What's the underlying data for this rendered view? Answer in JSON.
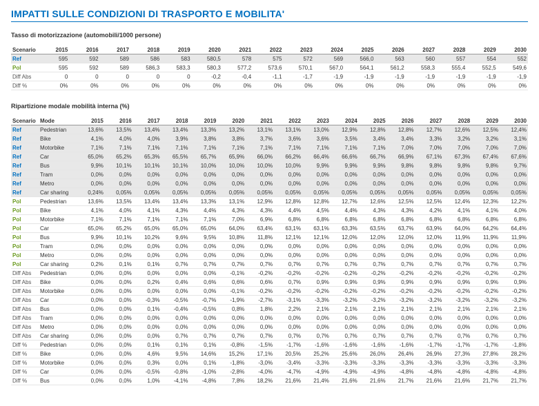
{
  "title": "IMPATTI SULLE CONDIZIONI DI TRASPORTO E MOBILITA'",
  "years": [
    "2015",
    "2016",
    "2017",
    "2018",
    "2019",
    "2020",
    "2021",
    "2022",
    "2023",
    "2024",
    "2025",
    "2026",
    "2027",
    "2028",
    "2029",
    "2030"
  ],
  "t1": {
    "title": "Tasso di motorizzazione (automobili/1000 persone)",
    "scenarioHeader": "Scenario",
    "rows": [
      {
        "s": "Ref",
        "cls": "ref",
        "shade": true,
        "v": [
          "595",
          "592",
          "589",
          "586",
          "583",
          "580,5",
          "578",
          "575",
          "572",
          "569",
          "566,0",
          "563",
          "560",
          "557",
          "554",
          "552"
        ]
      },
      {
        "s": "Pol",
        "cls": "pol",
        "v": [
          "595",
          "592",
          "589",
          "586,3",
          "583,3",
          "580,3",
          "577,2",
          "573,6",
          "570,1",
          "567,0",
          "564,1",
          "561,2",
          "558,3",
          "555,4",
          "552,5",
          "549,6"
        ]
      },
      {
        "s": "Diff Abs",
        "cls": "diff",
        "v": [
          "0",
          "0",
          "0",
          "0",
          "0",
          "-0,2",
          "-0,4",
          "-1,1",
          "-1,7",
          "-1,9",
          "-1,9",
          "-1,9",
          "-1,9",
          "-1,9",
          "-1,9",
          "-1,9"
        ]
      },
      {
        "s": "Diff %",
        "cls": "diff",
        "v": [
          "0%",
          "0%",
          "0%",
          "0%",
          "0%",
          "0%",
          "0%",
          "0%",
          "0%",
          "0%",
          "0%",
          "0%",
          "0%",
          "0%",
          "0%",
          "0%"
        ]
      }
    ]
  },
  "t2": {
    "title": "Ripartizione modale mobilità interna (%)",
    "scenarioHeader": "Scenario",
    "modeHeader": "Mode",
    "rows": [
      {
        "s": "Ref",
        "m": "Pedestrian",
        "cls": "ref",
        "shade": true,
        "v": [
          "13,6%",
          "13,5%",
          "13,4%",
          "13,4%",
          "13,3%",
          "13,2%",
          "13,1%",
          "13,1%",
          "13,0%",
          "12,9%",
          "12,8%",
          "12,8%",
          "12,7%",
          "12,6%",
          "12,5%",
          "12,4%"
        ]
      },
      {
        "s": "Ref",
        "m": "Bike",
        "cls": "ref",
        "shade": true,
        "v": [
          "4,1%",
          "4,0%",
          "4,0%",
          "3,9%",
          "3,8%",
          "3,8%",
          "3,7%",
          "3,6%",
          "3,6%",
          "3,5%",
          "3,4%",
          "3,4%",
          "3,3%",
          "3,2%",
          "3,2%",
          "3,1%"
        ]
      },
      {
        "s": "Ref",
        "m": "Motorbike",
        "cls": "ref",
        "shade": true,
        "v": [
          "7,1%",
          "7,1%",
          "7,1%",
          "7,1%",
          "7,1%",
          "7,1%",
          "7,1%",
          "7,1%",
          "7,1%",
          "7,1%",
          "7,1%",
          "7,0%",
          "7,0%",
          "7,0%",
          "7,0%",
          "7,0%"
        ]
      },
      {
        "s": "Ref",
        "m": "Car",
        "cls": "ref",
        "shade": true,
        "v": [
          "65,0%",
          "65,2%",
          "65,3%",
          "65,5%",
          "65,7%",
          "65,9%",
          "66,0%",
          "66,2%",
          "66,4%",
          "66,6%",
          "66,7%",
          "66,9%",
          "67,1%",
          "67,3%",
          "67,4%",
          "67,6%"
        ]
      },
      {
        "s": "Ref",
        "m": "Bus",
        "cls": "ref",
        "shade": true,
        "v": [
          "9,9%",
          "10,1%",
          "10,1%",
          "10,1%",
          "10,0%",
          "10,0%",
          "10,0%",
          "10,0%",
          "9,9%",
          "9,9%",
          "9,9%",
          "9,8%",
          "9,8%",
          "9,8%",
          "9,8%",
          "9,7%"
        ]
      },
      {
        "s": "Ref",
        "m": "Tram",
        "cls": "ref",
        "shade": true,
        "v": [
          "0,0%",
          "0,0%",
          "0,0%",
          "0,0%",
          "0,0%",
          "0,0%",
          "0,0%",
          "0,0%",
          "0,0%",
          "0,0%",
          "0,0%",
          "0,0%",
          "0,0%",
          "0,0%",
          "0,0%",
          "0,0%"
        ]
      },
      {
        "s": "Ref",
        "m": "Metro",
        "cls": "ref",
        "shade": true,
        "v": [
          "0,0%",
          "0,0%",
          "0,0%",
          "0,0%",
          "0,0%",
          "0,0%",
          "0,0%",
          "0,0%",
          "0,0%",
          "0,0%",
          "0,0%",
          "0,0%",
          "0,0%",
          "0,0%",
          "0,0%",
          "0,0%"
        ]
      },
      {
        "s": "Ref",
        "m": "Car sharing",
        "cls": "ref",
        "shade": true,
        "v": [
          "0,24%",
          "0,05%",
          "0,05%",
          "0,05%",
          "0,05%",
          "0,05%",
          "0,05%",
          "0,05%",
          "0,05%",
          "0,05%",
          "0,05%",
          "0,05%",
          "0,05%",
          "0,05%",
          "0,05%",
          "0,05%"
        ]
      },
      {
        "s": "Pol",
        "m": "Pedestrian",
        "cls": "pol",
        "v": [
          "13,6%",
          "13,5%",
          "13,4%",
          "13,4%",
          "13,3%",
          "13,1%",
          "12,9%",
          "12,8%",
          "12,8%",
          "12,7%",
          "12,6%",
          "12,5%",
          "12,5%",
          "12,4%",
          "12,3%",
          "12,2%"
        ]
      },
      {
        "s": "Pol",
        "m": "Bike",
        "cls": "pol",
        "v": [
          "4,1%",
          "4,0%",
          "4,1%",
          "4,3%",
          "4,4%",
          "4,3%",
          "4,3%",
          "4,4%",
          "4,5%",
          "4,4%",
          "4,3%",
          "4,3%",
          "4,2%",
          "4,1%",
          "4,1%",
          "4,0%"
        ]
      },
      {
        "s": "Pol",
        "m": "Motorbike",
        "cls": "pol",
        "v": [
          "7,1%",
          "7,1%",
          "7,1%",
          "7,1%",
          "7,1%",
          "7,0%",
          "6,9%",
          "6,8%",
          "6,8%",
          "6,8%",
          "6,8%",
          "6,8%",
          "6,8%",
          "6,8%",
          "6,8%",
          "6,8%"
        ]
      },
      {
        "s": "Pol",
        "m": "Car",
        "cls": "pol",
        "v": [
          "65,0%",
          "65,2%",
          "65,0%",
          "65,0%",
          "65,0%",
          "64,0%",
          "63,4%",
          "63,1%",
          "63,1%",
          "63,3%",
          "63,5%",
          "63,7%",
          "63,9%",
          "64,0%",
          "64,2%",
          "64,4%"
        ]
      },
      {
        "s": "Pol",
        "m": "Bus",
        "cls": "pol",
        "v": [
          "9,9%",
          "10,1%",
          "10,2%",
          "9,6%",
          "9,5%",
          "10,8%",
          "11,8%",
          "12,1%",
          "12,1%",
          "12,0%",
          "12,0%",
          "12,0%",
          "12,0%",
          "11,9%",
          "11,9%",
          "11,9%"
        ]
      },
      {
        "s": "Pol",
        "m": "Tram",
        "cls": "pol",
        "v": [
          "0,0%",
          "0,0%",
          "0,0%",
          "0,0%",
          "0,0%",
          "0,0%",
          "0,0%",
          "0,0%",
          "0,0%",
          "0,0%",
          "0,0%",
          "0,0%",
          "0,0%",
          "0,0%",
          "0,0%",
          "0,0%"
        ]
      },
      {
        "s": "Pol",
        "m": "Metro",
        "cls": "pol",
        "v": [
          "0,0%",
          "0,0%",
          "0,0%",
          "0,0%",
          "0,0%",
          "0,0%",
          "0,0%",
          "0,0%",
          "0,0%",
          "0,0%",
          "0,0%",
          "0,0%",
          "0,0%",
          "0,0%",
          "0,0%",
          "0,0%"
        ]
      },
      {
        "s": "Pol",
        "m": "Car sharing",
        "cls": "pol",
        "v": [
          "0,2%",
          "0,1%",
          "0,1%",
          "0,7%",
          "0,7%",
          "0,7%",
          "0,7%",
          "0,7%",
          "0,7%",
          "0,7%",
          "0,7%",
          "0,7%",
          "0,7%",
          "0,7%",
          "0,7%",
          "0,7%"
        ]
      },
      {
        "s": "Diff Abs",
        "m": "Pedestrian",
        "cls": "diff",
        "v": [
          "0,0%",
          "0,0%",
          "0,0%",
          "0,0%",
          "0,0%",
          "-0,1%",
          "-0,2%",
          "-0,2%",
          "-0,2%",
          "-0,2%",
          "-0,2%",
          "-0,2%",
          "-0,2%",
          "-0,2%",
          "-0,2%",
          "-0,2%"
        ]
      },
      {
        "s": "Diff Abs",
        "m": "Bike",
        "cls": "diff",
        "v": [
          "0,0%",
          "0,0%",
          "0,2%",
          "0,4%",
          "0,6%",
          "0,6%",
          "0,6%",
          "0,7%",
          "0,9%",
          "0,9%",
          "0,9%",
          "0,9%",
          "0,9%",
          "0,9%",
          "0,9%",
          "0,9%"
        ]
      },
      {
        "s": "Diff Abs",
        "m": "Motorbike",
        "cls": "diff",
        "v": [
          "0,0%",
          "0,0%",
          "0,0%",
          "0,0%",
          "0,0%",
          "-0,1%",
          "-0,2%",
          "-0,2%",
          "-0,2%",
          "-0,2%",
          "-0,2%",
          "-0,2%",
          "-0,2%",
          "-0,2%",
          "-0,2%",
          "-0,2%"
        ]
      },
      {
        "s": "Diff Abs",
        "m": "Car",
        "cls": "diff",
        "v": [
          "0,0%",
          "0,0%",
          "-0,3%",
          "-0,5%",
          "-0,7%",
          "-1,9%",
          "-2,7%",
          "-3,1%",
          "-3,3%",
          "-3,2%",
          "-3,2%",
          "-3,2%",
          "-3,2%",
          "-3,2%",
          "-3,2%",
          "-3,2%"
        ]
      },
      {
        "s": "Diff Abs",
        "m": "Bus",
        "cls": "diff",
        "v": [
          "0,0%",
          "0,0%",
          "0,1%",
          "-0,4%",
          "-0,5%",
          "0,8%",
          "1,8%",
          "2,2%",
          "2,1%",
          "2,1%",
          "2,1%",
          "2,1%",
          "2,1%",
          "2,1%",
          "2,1%",
          "2,1%"
        ]
      },
      {
        "s": "Diff Abs",
        "m": "Tram",
        "cls": "diff",
        "v": [
          "0,0%",
          "0,0%",
          "0,0%",
          "0,0%",
          "0,0%",
          "0,0%",
          "0,0%",
          "0,0%",
          "0,0%",
          "0,0%",
          "0,0%",
          "0,0%",
          "0,0%",
          "0,0%",
          "0,0%",
          "0,0%"
        ]
      },
      {
        "s": "Diff Abs",
        "m": "Metro",
        "cls": "diff",
        "v": [
          "0,0%",
          "0,0%",
          "0,0%",
          "0,0%",
          "0,0%",
          "0,0%",
          "0,0%",
          "0,0%",
          "0,0%",
          "0,0%",
          "0,0%",
          "0,0%",
          "0,0%",
          "0,0%",
          "0,0%",
          "0,0%"
        ]
      },
      {
        "s": "Diff Abs",
        "m": "Car sharing",
        "cls": "diff",
        "v": [
          "0,0%",
          "0,0%",
          "0,0%",
          "0,7%",
          "0,7%",
          "0,7%",
          "0,7%",
          "0,7%",
          "0,7%",
          "0,7%",
          "0,7%",
          "0,7%",
          "0,7%",
          "0,7%",
          "0,7%",
          "0,7%"
        ]
      },
      {
        "s": "Diff %",
        "m": "Pedestrian",
        "cls": "diff",
        "v": [
          "0,0%",
          "0,0%",
          "0,1%",
          "0,1%",
          "0,1%",
          "-0,8%",
          "-1,5%",
          "-1,7%",
          "-1,6%",
          "-1,6%",
          "-1,6%",
          "-1,6%",
          "-1,7%",
          "-1,7%",
          "-1,7%",
          "-1,8%"
        ]
      },
      {
        "s": "Diff %",
        "m": "Bike",
        "cls": "diff",
        "v": [
          "0,0%",
          "0,0%",
          "4,6%",
          "9,5%",
          "14,6%",
          "15,2%",
          "17,1%",
          "20,5%",
          "25,2%",
          "25,6%",
          "26,0%",
          "26,4%",
          "26,9%",
          "27,3%",
          "27,8%",
          "28,2%"
        ]
      },
      {
        "s": "Diff %",
        "m": "Motorbike",
        "cls": "diff",
        "v": [
          "0,0%",
          "0,0%",
          "0,3%",
          "0,0%",
          "0,1%",
          "-1,8%",
          "-3,0%",
          "-3,4%",
          "-3,3%",
          "-3,3%",
          "-3,3%",
          "-3,3%",
          "-3,3%",
          "-3,3%",
          "-3,3%",
          "-3,3%"
        ]
      },
      {
        "s": "Diff %",
        "m": "Car",
        "cls": "diff",
        "v": [
          "0,0%",
          "0,0%",
          "-0,5%",
          "-0,8%",
          "-1,0%",
          "-2,8%",
          "-4,0%",
          "-4,7%",
          "-4,9%",
          "-4,9%",
          "-4,9%",
          "-4,8%",
          "-4,8%",
          "-4,8%",
          "-4,8%",
          "-4,8%"
        ]
      },
      {
        "s": "Diff %",
        "m": "Bus",
        "cls": "diff",
        "v": [
          "0,0%",
          "0,0%",
          "1,0%",
          "-4,1%",
          "-4,8%",
          "7,8%",
          "18,2%",
          "21,6%",
          "21,4%",
          "21,6%",
          "21,6%",
          "21,7%",
          "21,6%",
          "21,6%",
          "21,7%",
          "21,7%"
        ]
      }
    ]
  }
}
